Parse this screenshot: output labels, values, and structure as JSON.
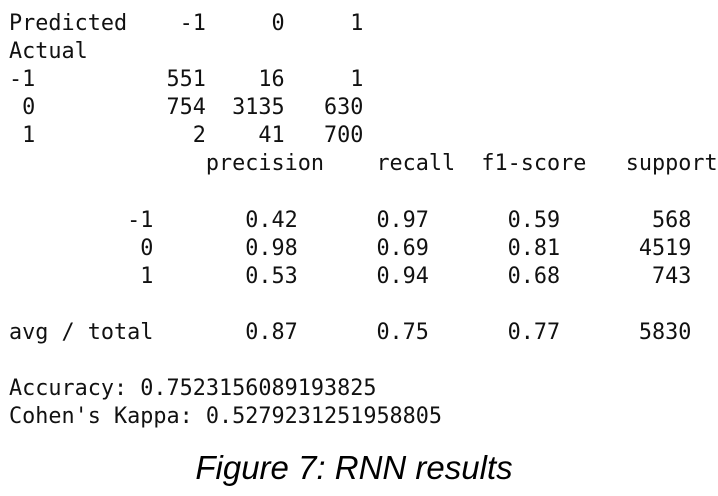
{
  "confusion_matrix": {
    "header": "Predicted    -1     0     1",
    "axis_label": "Actual",
    "rows": [
      "-1          551    16     1",
      " 0          754  3135   630",
      " 1            2    41   700"
    ]
  },
  "classification_report": {
    "header": "               precision    recall  f1-score   support",
    "blank": "",
    "rows": [
      "         -1       0.42      0.97      0.59       568",
      "          0       0.98      0.69      0.81      4519",
      "          1       0.53      0.94      0.68       743"
    ],
    "blank2": "",
    "total": "avg / total       0.87      0.75      0.77      5830"
  },
  "metrics": {
    "blank": "",
    "accuracy": "Accuracy: 0.7523156089193825",
    "kappa": "Cohen's Kappa: 0.5279231251958805"
  },
  "caption": "Figure 7: RNN results"
}
